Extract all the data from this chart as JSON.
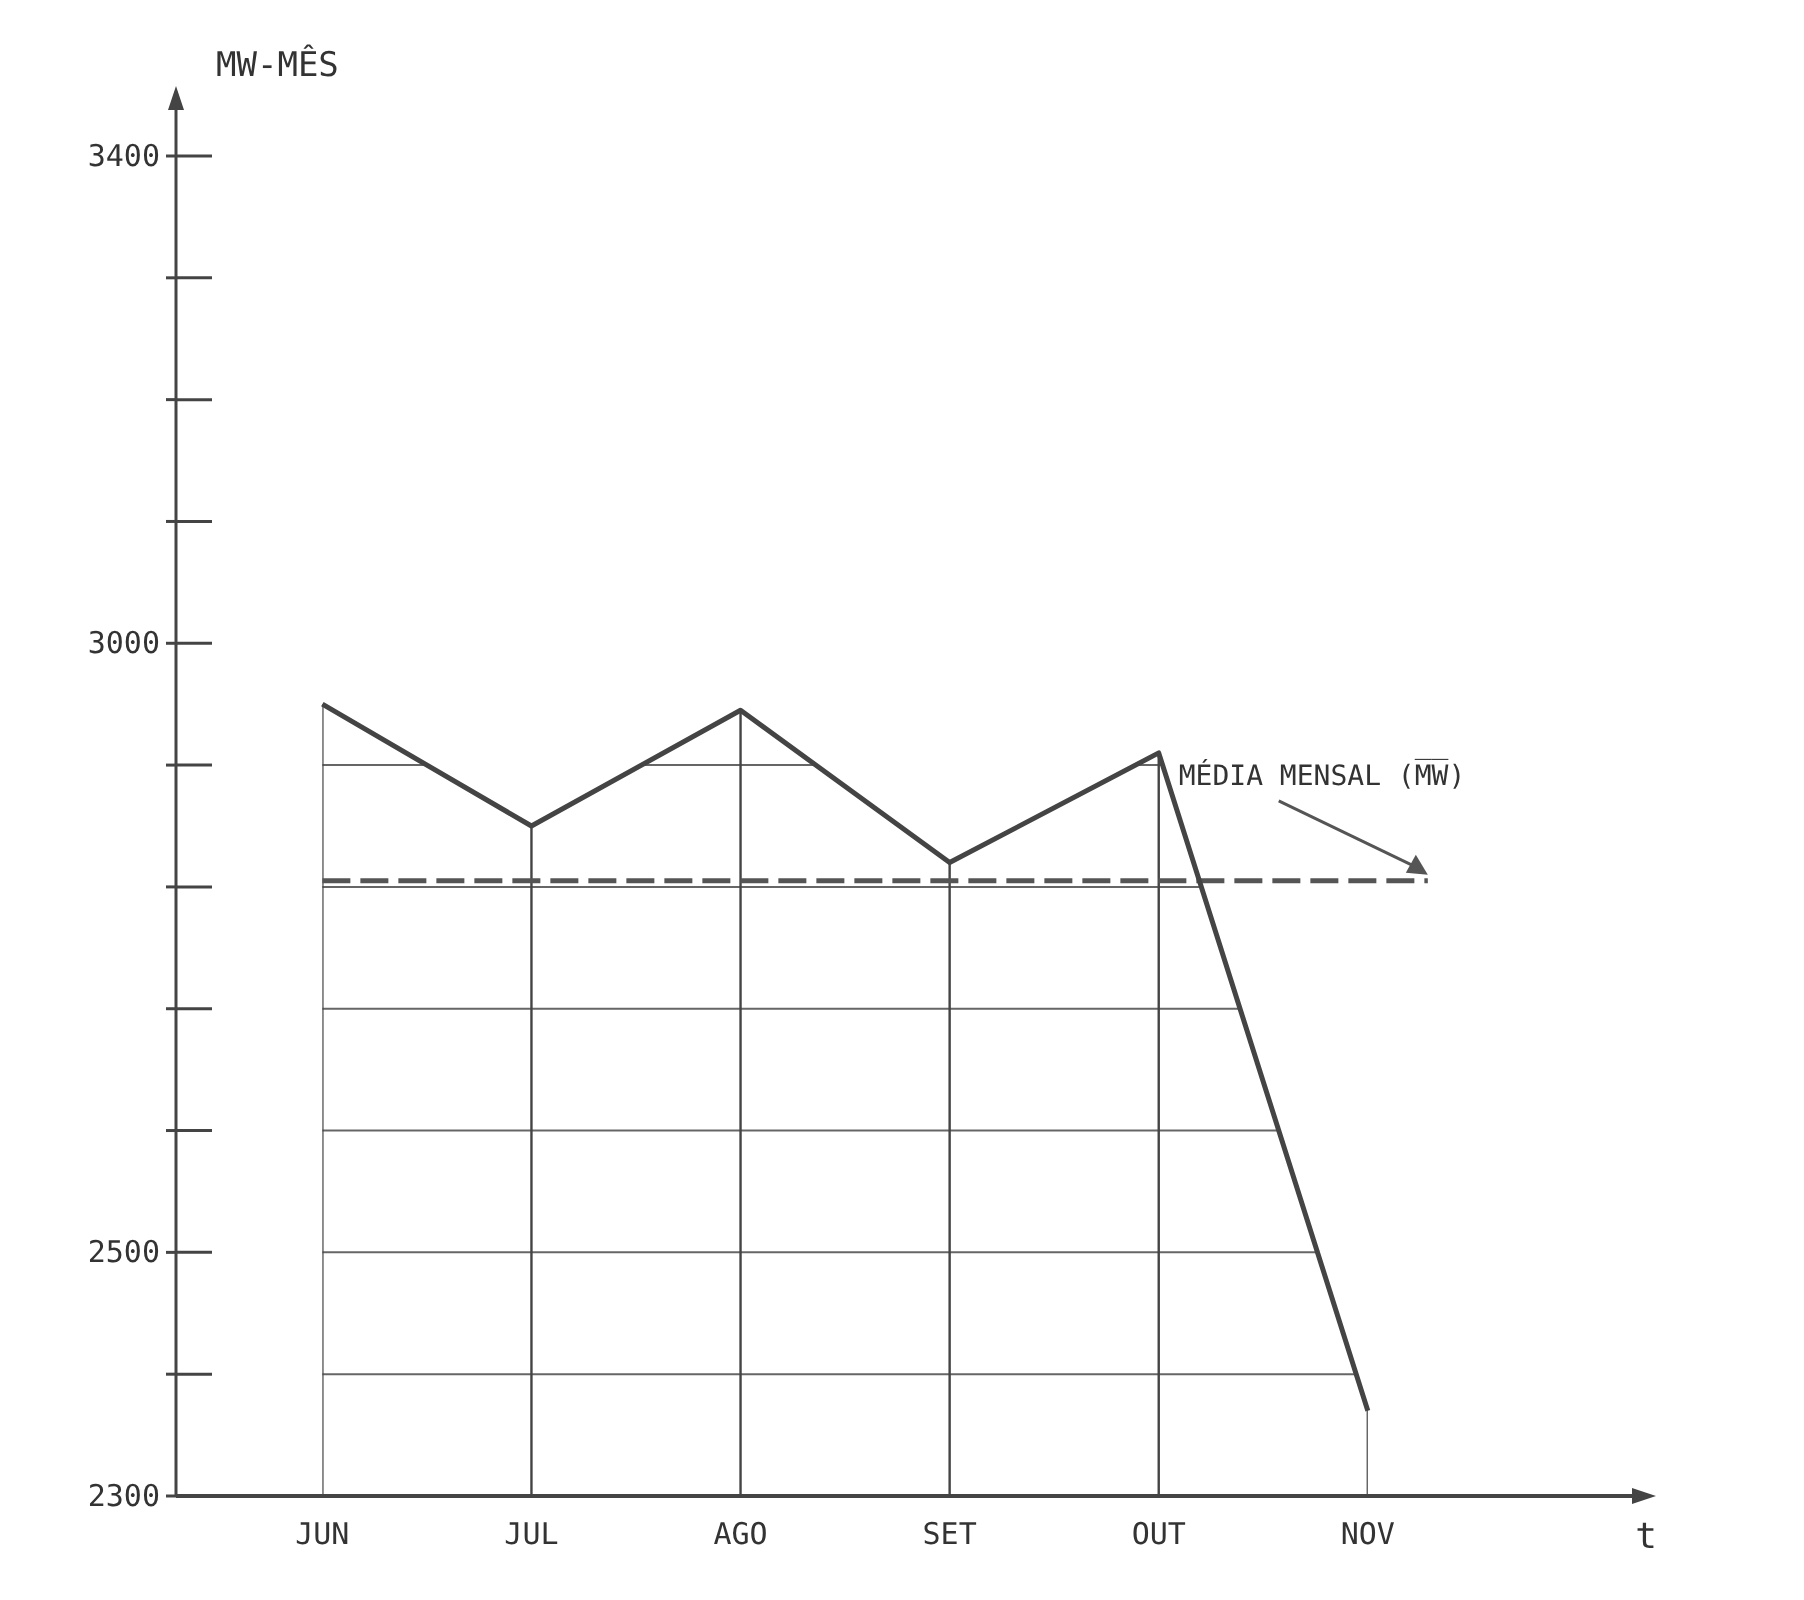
{
  "chart_data": {
    "type": "line",
    "xlabel": "t",
    "ylabel": "MW-MÊS",
    "categories": [
      "JUN",
      "JUL",
      "AGO",
      "SET",
      "OUT",
      "NOV"
    ],
    "series": [
      {
        "color": "#444444",
        "values": [
          2950,
          2850,
          2945,
          2820,
          2910,
          2370
        ]
      }
    ],
    "ylim": [
      2300,
      3400
    ],
    "yticks": [
      2300,
      {
        "value": 2400,
        "label": null
      },
      2500,
      {
        "value": 2600,
        "label": null
      },
      {
        "value": 2700,
        "label": null
      },
      {
        "value": 2800,
        "label": null
      },
      {
        "value": 2900,
        "label": null
      },
      3000,
      {
        "value": 3100,
        "label": null
      },
      {
        "value": 3200,
        "label": null
      },
      {
        "value": 3300,
        "label": null
      },
      3400
    ],
    "grid": true,
    "marker": "none",
    "line_style": "solid",
    "ref_lines": [
      {
        "axis": "y",
        "value": 2805,
        "label": "MÉDIA MENSAL (M̅W̅)",
        "line_style": "dashed",
        "color": "#555555"
      }
    ]
  }
}
